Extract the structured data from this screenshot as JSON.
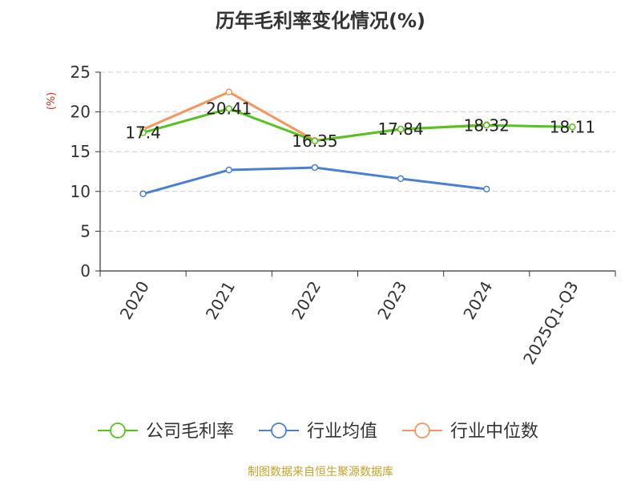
{
  "colors": {
    "company": "#52c41a",
    "industry_avg": "#4a7fd6",
    "industry_median": "#f7955c",
    "axis": "#333333",
    "grid": "#cccccc",
    "unit": "#d62d20",
    "source": "#c9a227",
    "title": "#333333"
  },
  "chart_data": {
    "type": "line",
    "title": "历年毛利率变化情况(%)",
    "unit_label": "(%)",
    "categories": [
      "2020",
      "2021",
      "2022",
      "2023",
      "2024",
      "2025Q1-Q3"
    ],
    "ylim": [
      0,
      25
    ],
    "yticks": [
      0,
      5,
      10,
      15,
      20,
      25
    ],
    "grid": true,
    "legend_position": "bottom",
    "series": [
      {
        "name": "公司毛利率",
        "color_key": "company",
        "values": [
          17.4,
          20.41,
          16.35,
          17.84,
          18.32,
          18.11
        ],
        "labels": [
          "17.4",
          "20.41",
          "16.35",
          "17.84",
          "18.32",
          "18.11"
        ]
      },
      {
        "name": "行业均值",
        "color_key": "industry_avg",
        "values": [
          9.7,
          12.7,
          13.0,
          11.6,
          10.3,
          null
        ]
      },
      {
        "name": "行业中位数",
        "color_key": "industry_median",
        "values": [
          17.8,
          22.5,
          16.4,
          17.8,
          18.4,
          null
        ]
      }
    ]
  },
  "source_text": "制图数据来自恒生聚源数据库"
}
